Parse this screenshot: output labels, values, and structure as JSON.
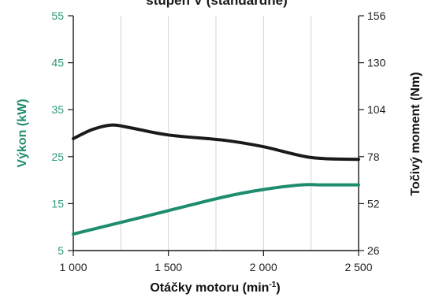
{
  "chart_data": {
    "type": "line",
    "title": "stupeň V (standardně)",
    "xlabel_main": "Otáčky motoru (min",
    "xlabel_sup": "-1",
    "xlabel_tail": ")",
    "ylabel_left": "Výkon (kW)",
    "ylabel_right": "Točivý moment (Nm)",
    "x_ticks": [
      "1 000",
      "1 500",
      "2 000",
      "2 500"
    ],
    "y_left_ticks": [
      "55",
      "45",
      "35",
      "25",
      "15",
      "5"
    ],
    "y_right_ticks": [
      "156",
      "130",
      "104",
      "78",
      "52",
      "26"
    ],
    "xlim": [
      1000,
      2500
    ],
    "ylim_left": [
      5,
      55
    ],
    "ylim_right": [
      26,
      156
    ],
    "grid": "vertical",
    "series": [
      {
        "axis": "left",
        "color": "#1e8c6e",
        "x": [
          1000,
          1200,
          1500,
          1800,
          2000,
          2200,
          2300,
          2400,
          2500
        ],
        "y": [
          8.5,
          10.5,
          13.5,
          16.5,
          18.0,
          19.0,
          19.0,
          19.0,
          19.0
        ]
      },
      {
        "axis": "right",
        "color": "#1a1a1a",
        "x": [
          1000,
          1100,
          1200,
          1300,
          1500,
          1800,
          2000,
          2250,
          2500
        ],
        "y": [
          88,
          93,
          95.5,
          94,
          90,
          87,
          83.5,
          77.5,
          76.5
        ]
      }
    ]
  }
}
